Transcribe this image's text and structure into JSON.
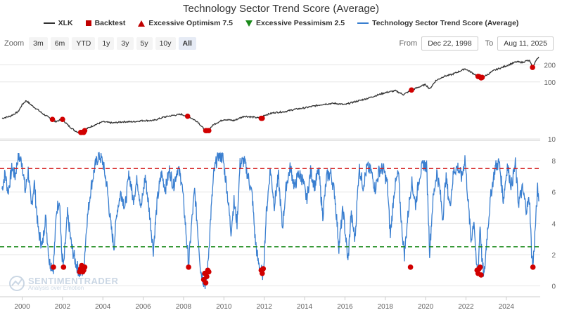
{
  "title": "Technology Sector Trend Score (Average)",
  "legend": [
    {
      "label": "XLK",
      "color": "#333333",
      "symbol": "line"
    },
    {
      "label": "Backtest",
      "color": "#c00000",
      "symbol": "square"
    },
    {
      "label": "Excessive Optimism 7.5",
      "color": "#c00000",
      "symbol": "triangle-up"
    },
    {
      "label": "Excessive Pessimism 2.5",
      "color": "#1a8a1a",
      "symbol": "triangle-down"
    },
    {
      "label": "Technology Sector Trend Score (Average)",
      "color": "#3a7fd0",
      "symbol": "line"
    }
  ],
  "toolbar": {
    "zoom_label": "Zoom",
    "buttons": [
      "3m",
      "6m",
      "YTD",
      "1y",
      "3y",
      "5y",
      "10y",
      "All"
    ],
    "active": "All",
    "from_label": "From",
    "from_value": "Dec 22, 1998",
    "to_label": "To",
    "to_value": "Aug 11, 2025"
  },
  "watermark": {
    "main": "SENTIMENTRADER",
    "sub": "Analysis over Emotion"
  },
  "chart_data": {
    "type": "line",
    "x_ticks": [
      "2000",
      "2002",
      "2004",
      "2006",
      "2008",
      "2010",
      "2012",
      "2014",
      "2016",
      "2018",
      "2020",
      "2022",
      "2024"
    ],
    "xlim": [
      1998.97,
      2025.61
    ],
    "price_panel": {
      "series_name": "XLK",
      "color": "#333333",
      "scale": "log",
      "y_ticks": [
        10,
        100,
        200
      ],
      "ylim": [
        10,
        300
      ],
      "points": [
        [
          1999.0,
          23
        ],
        [
          1999.4,
          25
        ],
        [
          1999.8,
          30
        ],
        [
          2000.0,
          40
        ],
        [
          2000.2,
          47
        ],
        [
          2000.5,
          38
        ],
        [
          2000.8,
          32
        ],
        [
          2001.0,
          28
        ],
        [
          2001.3,
          24
        ],
        [
          2001.6,
          20
        ],
        [
          2002.0,
          22
        ],
        [
          2002.3,
          17
        ],
        [
          2002.6,
          14
        ],
        [
          2002.8,
          13
        ],
        [
          2003.0,
          14
        ],
        [
          2003.5,
          17
        ],
        [
          2004.0,
          20
        ],
        [
          2004.5,
          19
        ],
        [
          2005.0,
          20
        ],
        [
          2005.5,
          20
        ],
        [
          2006.0,
          21
        ],
        [
          2006.5,
          21
        ],
        [
          2007.0,
          24
        ],
        [
          2007.5,
          26
        ],
        [
          2007.9,
          27
        ],
        [
          2008.3,
          24
        ],
        [
          2008.7,
          20
        ],
        [
          2009.0,
          15
        ],
        [
          2009.2,
          14
        ],
        [
          2009.5,
          18
        ],
        [
          2010.0,
          22
        ],
        [
          2010.5,
          21
        ],
        [
          2011.0,
          25
        ],
        [
          2011.5,
          24
        ],
        [
          2011.8,
          23
        ],
        [
          2012.0,
          26
        ],
        [
          2012.5,
          29
        ],
        [
          2013.0,
          30
        ],
        [
          2013.5,
          33
        ],
        [
          2014.0,
          35
        ],
        [
          2014.5,
          38
        ],
        [
          2015.0,
          41
        ],
        [
          2015.5,
          42
        ],
        [
          2016.0,
          40
        ],
        [
          2016.5,
          45
        ],
        [
          2017.0,
          50
        ],
        [
          2017.5,
          57
        ],
        [
          2018.0,
          65
        ],
        [
          2018.5,
          70
        ],
        [
          2018.9,
          60
        ],
        [
          2019.3,
          72
        ],
        [
          2019.8,
          85
        ],
        [
          2020.0,
          90
        ],
        [
          2020.2,
          75
        ],
        [
          2020.5,
          105
        ],
        [
          2020.9,
          125
        ],
        [
          2021.3,
          135
        ],
        [
          2021.7,
          155
        ],
        [
          2021.95,
          170
        ],
        [
          2022.3,
          145
        ],
        [
          2022.6,
          125
        ],
        [
          2022.8,
          120
        ],
        [
          2023.0,
          130
        ],
        [
          2023.4,
          160
        ],
        [
          2023.8,
          180
        ],
        [
          2024.2,
          205
        ],
        [
          2024.5,
          225
        ],
        [
          2024.8,
          220
        ],
        [
          2025.0,
          235
        ],
        [
          2025.15,
          235
        ],
        [
          2025.3,
          180
        ],
        [
          2025.45,
          230
        ],
        [
          2025.61,
          275
        ]
      ],
      "backtest": [
        [
          2001.5,
          22
        ],
        [
          2002.0,
          22
        ],
        [
          2002.9,
          13
        ],
        [
          2002.95,
          13
        ],
        [
          2003.05,
          13
        ],
        [
          2003.1,
          14
        ],
        [
          2008.2,
          25
        ],
        [
          2009.1,
          14
        ],
        [
          2009.15,
          14
        ],
        [
          2009.25,
          14
        ],
        [
          2011.85,
          23
        ],
        [
          2011.9,
          23
        ],
        [
          2019.3,
          72
        ],
        [
          2022.6,
          125
        ],
        [
          2022.65,
          124
        ],
        [
          2022.75,
          118
        ],
        [
          2022.8,
          120
        ],
        [
          2025.3,
          180
        ]
      ]
    },
    "trend_panel": {
      "series_name": "Technology Sector Trend Score (Average)",
      "color": "#3a7fd0",
      "y_ticks": [
        0,
        2,
        4,
        6,
        8
      ],
      "ylim": [
        -0.2,
        8.5
      ],
      "excessive_optimism": 7.5,
      "excessive_pessimism": 2.5,
      "points": [
        [
          1999.0,
          6.2
        ],
        [
          1999.15,
          7.2
        ],
        [
          1999.3,
          6.0
        ],
        [
          1999.5,
          7.6
        ],
        [
          1999.65,
          7.0
        ],
        [
          1999.8,
          8.3
        ],
        [
          2000.0,
          7.9
        ],
        [
          2000.15,
          6.0
        ],
        [
          2000.3,
          7.4
        ],
        [
          2000.45,
          5.0
        ],
        [
          2000.6,
          6.6
        ],
        [
          2000.8,
          3.5
        ],
        [
          2001.0,
          2.5
        ],
        [
          2001.15,
          4.5
        ],
        [
          2001.35,
          1.5
        ],
        [
          2001.55,
          1.2
        ],
        [
          2001.7,
          4.8
        ],
        [
          2001.85,
          5.6
        ],
        [
          2001.95,
          2.2
        ],
        [
          2002.05,
          1.2
        ],
        [
          2002.25,
          4.6
        ],
        [
          2002.45,
          2.5
        ],
        [
          2002.65,
          1.5
        ],
        [
          2002.85,
          0.8
        ],
        [
          2003.05,
          1.0
        ],
        [
          2003.2,
          4.0
        ],
        [
          2003.4,
          6.2
        ],
        [
          2003.6,
          7.6
        ],
        [
          2003.8,
          8.4
        ],
        [
          2004.0,
          7.9
        ],
        [
          2004.2,
          6.4
        ],
        [
          2004.4,
          3.8
        ],
        [
          2004.55,
          2.5
        ],
        [
          2004.7,
          4.8
        ],
        [
          2004.9,
          6.0
        ],
        [
          2005.1,
          5.0
        ],
        [
          2005.3,
          7.2
        ],
        [
          2005.5,
          5.5
        ],
        [
          2005.7,
          6.8
        ],
        [
          2005.9,
          5.0
        ],
        [
          2006.1,
          7.0
        ],
        [
          2006.3,
          4.8
        ],
        [
          2006.5,
          2.3
        ],
        [
          2006.7,
          5.5
        ],
        [
          2006.9,
          7.2
        ],
        [
          2007.1,
          6.2
        ],
        [
          2007.3,
          7.4
        ],
        [
          2007.5,
          6.4
        ],
        [
          2007.7,
          7.5
        ],
        [
          2007.9,
          6.8
        ],
        [
          2008.1,
          3.8
        ],
        [
          2008.25,
          1.3
        ],
        [
          2008.4,
          4.0
        ],
        [
          2008.55,
          6.1
        ],
        [
          2008.7,
          3.6
        ],
        [
          2008.85,
          1.0
        ],
        [
          2009.0,
          0.3
        ],
        [
          2009.1,
          0.1
        ],
        [
          2009.2,
          1.2
        ],
        [
          2009.35,
          4.5
        ],
        [
          2009.5,
          7.2
        ],
        [
          2009.7,
          8.4
        ],
        [
          2009.95,
          8.2
        ],
        [
          2010.15,
          6.2
        ],
        [
          2010.35,
          3.5
        ],
        [
          2010.5,
          5.4
        ],
        [
          2010.65,
          4.0
        ],
        [
          2010.8,
          7.8
        ],
        [
          2011.0,
          8.0
        ],
        [
          2011.2,
          7.0
        ],
        [
          2011.4,
          5.8
        ],
        [
          2011.55,
          3.0
        ],
        [
          2011.7,
          1.5
        ],
        [
          2011.85,
          1.0
        ],
        [
          2011.95,
          0.7
        ],
        [
          2012.1,
          4.6
        ],
        [
          2012.3,
          7.5
        ],
        [
          2012.5,
          5.2
        ],
        [
          2012.7,
          7.0
        ],
        [
          2012.9,
          3.7
        ],
        [
          2013.1,
          6.5
        ],
        [
          2013.3,
          7.6
        ],
        [
          2013.5,
          6.3
        ],
        [
          2013.7,
          7.2
        ],
        [
          2013.9,
          6.8
        ],
        [
          2014.1,
          5.5
        ],
        [
          2014.3,
          7.3
        ],
        [
          2014.5,
          6.4
        ],
        [
          2014.7,
          7.4
        ],
        [
          2014.9,
          4.5
        ],
        [
          2015.1,
          7.0
        ],
        [
          2015.3,
          7.2
        ],
        [
          2015.5,
          5.8
        ],
        [
          2015.7,
          2.5
        ],
        [
          2015.9,
          4.9
        ],
        [
          2016.05,
          3.0
        ],
        [
          2016.15,
          1.5
        ],
        [
          2016.3,
          4.6
        ],
        [
          2016.5,
          3.0
        ],
        [
          2016.7,
          7.6
        ],
        [
          2016.9,
          6.4
        ],
        [
          2017.1,
          7.6
        ],
        [
          2017.3,
          7.3
        ],
        [
          2017.5,
          6.2
        ],
        [
          2017.7,
          7.4
        ],
        [
          2017.9,
          7.5
        ],
        [
          2018.1,
          6.5
        ],
        [
          2018.25,
          3.2
        ],
        [
          2018.45,
          6.2
        ],
        [
          2018.65,
          7.2
        ],
        [
          2018.8,
          4.0
        ],
        [
          2018.95,
          2.0
        ],
        [
          2019.1,
          4.2
        ],
        [
          2019.3,
          6.7
        ],
        [
          2019.5,
          5.2
        ],
        [
          2019.7,
          7.1
        ],
        [
          2019.9,
          7.8
        ],
        [
          2020.05,
          7.6
        ],
        [
          2020.2,
          2.2
        ],
        [
          2020.35,
          5.3
        ],
        [
          2020.55,
          7.3
        ],
        [
          2020.7,
          6.2
        ],
        [
          2020.85,
          4.3
        ],
        [
          2021.0,
          7.0
        ],
        [
          2021.2,
          5.1
        ],
        [
          2021.4,
          7.4
        ],
        [
          2021.6,
          7.6
        ],
        [
          2021.8,
          6.9
        ],
        [
          2021.95,
          8.2
        ],
        [
          2022.1,
          5.5
        ],
        [
          2022.25,
          2.9
        ],
        [
          2022.4,
          4.3
        ],
        [
          2022.5,
          1.5
        ],
        [
          2022.6,
          0.8
        ],
        [
          2022.7,
          4.0
        ],
        [
          2022.8,
          1.5
        ],
        [
          2022.9,
          0.6
        ],
        [
          2023.05,
          3.3
        ],
        [
          2023.25,
          6.0
        ],
        [
          2023.45,
          7.6
        ],
        [
          2023.65,
          7.9
        ],
        [
          2023.85,
          5.5
        ],
        [
          2024.05,
          7.7
        ],
        [
          2024.25,
          6.4
        ],
        [
          2024.45,
          7.8
        ],
        [
          2024.6,
          5.3
        ],
        [
          2024.8,
          6.2
        ],
        [
          2025.0,
          4.9
        ],
        [
          2025.15,
          5.6
        ],
        [
          2025.25,
          2.2
        ],
        [
          2025.32,
          1.2
        ],
        [
          2025.45,
          4.0
        ],
        [
          2025.55,
          6.2
        ],
        [
          2025.61,
          5.4
        ]
      ],
      "backtest": [
        [
          2001.55,
          1.2
        ],
        [
          2002.05,
          1.2
        ],
        [
          2002.85,
          0.9
        ],
        [
          2002.9,
          1.1
        ],
        [
          2002.95,
          1.3
        ],
        [
          2003.0,
          0.9
        ],
        [
          2003.05,
          1.0
        ],
        [
          2003.1,
          1.2
        ],
        [
          2008.25,
          1.2
        ],
        [
          2009.0,
          0.4
        ],
        [
          2009.05,
          0.8
        ],
        [
          2009.1,
          0.2
        ],
        [
          2009.15,
          0.6
        ],
        [
          2009.2,
          1.0
        ],
        [
          2009.25,
          0.9
        ],
        [
          2011.85,
          1.0
        ],
        [
          2011.9,
          0.8
        ],
        [
          2011.95,
          1.1
        ],
        [
          2019.25,
          1.2
        ],
        [
          2022.55,
          1.0
        ],
        [
          2022.6,
          0.8
        ],
        [
          2022.65,
          1.1
        ],
        [
          2022.7,
          1.2
        ],
        [
          2022.75,
          0.7
        ],
        [
          2025.32,
          1.2
        ]
      ]
    }
  }
}
